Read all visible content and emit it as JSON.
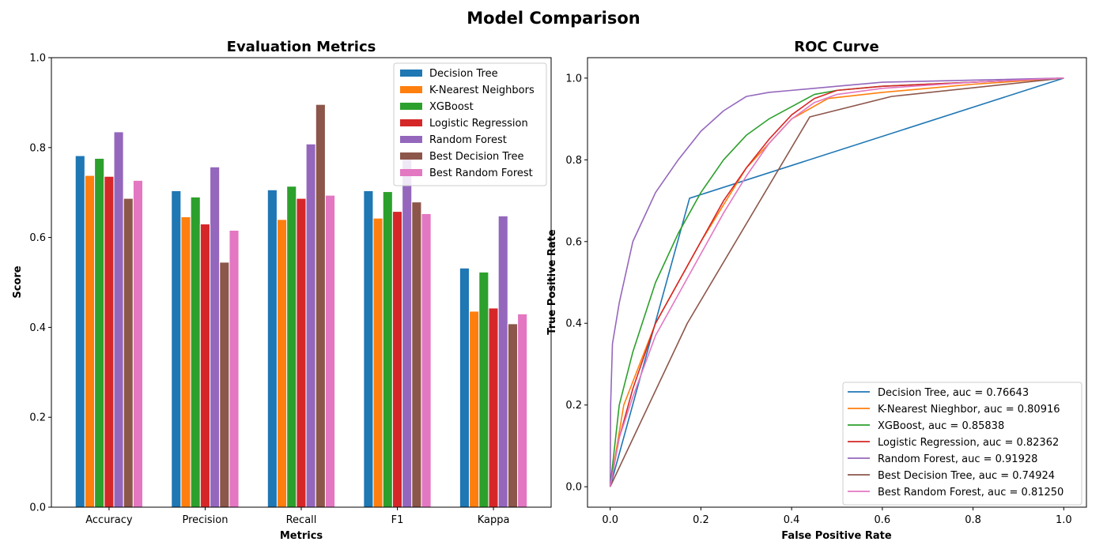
{
  "figure_title": "Model Comparison",
  "colors": {
    "Decision Tree": "#1f77b4",
    "K-Nearest Neighbors": "#ff7f0e",
    "XGBoost": "#2ca02c",
    "Logistic Regression": "#d62728",
    "Random Forest": "#9467bd",
    "Best Decision Tree": "#8c564b",
    "Best Random Forest": "#e377c2"
  },
  "chart_data": [
    {
      "type": "bar",
      "title": "Evaluation Metrics",
      "xlabel": "Metrics",
      "ylabel": "Score",
      "ylim": [
        0,
        1.0
      ],
      "yticks": [
        "0.0",
        "0.2",
        "0.4",
        "0.6",
        "0.8",
        "1.0"
      ],
      "grid": false,
      "legend_position": "top-right",
      "categories": [
        "Accuracy",
        "Precision",
        "Recall",
        "F1",
        "Kappa"
      ],
      "series": [
        {
          "name": "Decision Tree",
          "values": [
            0.782,
            0.704,
            0.706,
            0.704,
            0.532
          ]
        },
        {
          "name": "K-Nearest Neighbors",
          "values": [
            0.738,
            0.646,
            0.64,
            0.643,
            0.436
          ]
        },
        {
          "name": "XGBoost",
          "values": [
            0.776,
            0.69,
            0.714,
            0.702,
            0.523
          ]
        },
        {
          "name": "Logistic Regression",
          "values": [
            0.736,
            0.63,
            0.687,
            0.658,
            0.443
          ]
        },
        {
          "name": "Random Forest",
          "values": [
            0.835,
            0.757,
            0.808,
            0.782,
            0.648
          ]
        },
        {
          "name": "Best Decision Tree",
          "values": [
            0.687,
            0.545,
            0.896,
            0.679,
            0.408
          ]
        },
        {
          "name": "Best Random Forest",
          "values": [
            0.727,
            0.616,
            0.694,
            0.653,
            0.43
          ]
        }
      ]
    },
    {
      "type": "line",
      "title": "ROC Curve",
      "xlabel": "False Positive Rate",
      "ylabel": "True Positive Rate",
      "xlim": [
        -0.05,
        1.05
      ],
      "ylim": [
        -0.05,
        1.05
      ],
      "xticks": [
        "0.0",
        "0.2",
        "0.4",
        "0.6",
        "0.8",
        "1.0"
      ],
      "yticks": [
        "0.0",
        "0.2",
        "0.4",
        "0.6",
        "0.8",
        "1.0"
      ],
      "grid": false,
      "legend_position": "lower-right",
      "series": [
        {
          "name": "Decision Tree, auc = 0.76643",
          "color_key": "Decision Tree",
          "x": [
            0,
            0.175,
            1.0
          ],
          "y": [
            0,
            0.706,
            1.0
          ]
        },
        {
          "name": "K-Nearest Nieghbor, auc = 0.80916",
          "color_key": "K-Nearest Neighbors",
          "x": [
            0,
            0.03,
            0.1,
            0.2,
            0.3,
            0.4,
            0.48,
            0.6,
            0.7,
            0.8,
            1.0
          ],
          "y": [
            0,
            0.2,
            0.4,
            0.6,
            0.78,
            0.9,
            0.95,
            0.965,
            0.975,
            0.985,
            1.0
          ]
        },
        {
          "name": "XGBoost, auc = 0.85838",
          "color_key": "XGBoost",
          "x": [
            0,
            0.01,
            0.02,
            0.05,
            0.1,
            0.15,
            0.2,
            0.25,
            0.3,
            0.35,
            0.4,
            0.45,
            0.5,
            0.6,
            0.8,
            1.0
          ],
          "y": [
            0,
            0.1,
            0.2,
            0.33,
            0.5,
            0.62,
            0.72,
            0.8,
            0.86,
            0.9,
            0.93,
            0.96,
            0.97,
            0.98,
            0.99,
            1.0
          ]
        },
        {
          "name": "Logistic Regression, auc = 0.82362",
          "color_key": "Logistic Regression",
          "x": [
            0,
            0.02,
            0.05,
            0.1,
            0.15,
            0.2,
            0.25,
            0.3,
            0.35,
            0.4,
            0.45,
            0.5,
            0.6,
            0.8,
            1.0
          ],
          "y": [
            0,
            0.12,
            0.24,
            0.4,
            0.5,
            0.6,
            0.7,
            0.78,
            0.85,
            0.91,
            0.95,
            0.97,
            0.98,
            0.99,
            1.0
          ]
        },
        {
          "name": "Random Forest, auc = 0.91928",
          "color_key": "Random Forest",
          "x": [
            0,
            0.001,
            0.005,
            0.02,
            0.05,
            0.1,
            0.15,
            0.2,
            0.25,
            0.3,
            0.35,
            0.4,
            0.5,
            0.6,
            0.8,
            1.0
          ],
          "y": [
            0,
            0.2,
            0.35,
            0.45,
            0.6,
            0.72,
            0.8,
            0.87,
            0.92,
            0.955,
            0.965,
            0.97,
            0.98,
            0.99,
            0.995,
            1.0
          ]
        },
        {
          "name": "Best Decision Tree, auc = 0.74924",
          "color_key": "Best Decision Tree",
          "x": [
            0,
            0.17,
            0.44,
            0.62,
            1.0
          ],
          "y": [
            0,
            0.4,
            0.905,
            0.955,
            1.0
          ]
        },
        {
          "name": "Best Random Forest, auc = 0.81250",
          "color_key": "Best Random Forest",
          "x": [
            0,
            0.02,
            0.05,
            0.1,
            0.15,
            0.2,
            0.25,
            0.3,
            0.35,
            0.4,
            0.45,
            0.5,
            0.6,
            0.8,
            1.0
          ],
          "y": [
            0,
            0.12,
            0.22,
            0.37,
            0.47,
            0.57,
            0.67,
            0.76,
            0.84,
            0.9,
            0.94,
            0.96,
            0.975,
            0.99,
            1.0
          ]
        }
      ]
    }
  ]
}
